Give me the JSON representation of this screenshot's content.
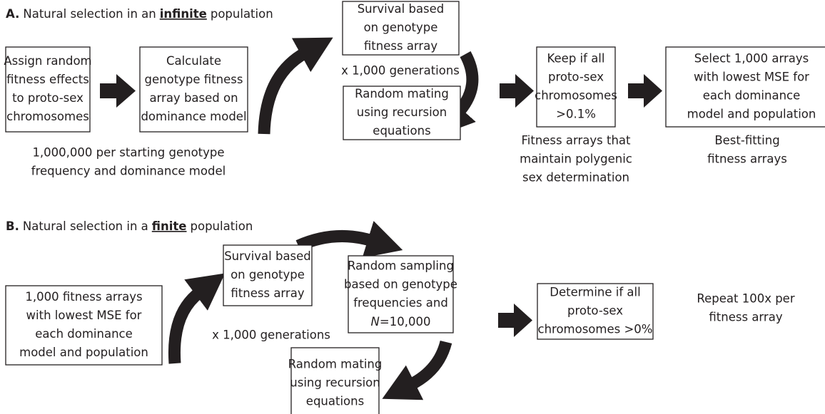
{
  "panel_a": {
    "label": "A.",
    "title": {
      "before": "Natural selection in an",
      "emphasis": "infinite",
      "after": "population"
    },
    "boxes": [
      {
        "lines": [
          "Assign random",
          "fitness effects",
          "to proto-sex",
          "chromosomes"
        ]
      },
      {
        "lines": [
          "Calculate",
          "genotype fitness",
          "array based on",
          "dominance model"
        ]
      },
      {
        "lines": [
          "Survival based",
          "on genotype",
          "fitness array"
        ]
      },
      {
        "lines": [
          "Random mating",
          "using recursion",
          "equations"
        ]
      },
      {
        "lines": [
          "Keep if all",
          "proto-sex",
          "chromosomes",
          ">0.1%"
        ]
      },
      {
        "lines": [
          "Select 1,000 arrays",
          "with lowest MSE for",
          "each dominance",
          "model and population"
        ]
      }
    ],
    "loop_label": "x 1,000 generations",
    "captions": [
      {
        "lines": [
          "1,000,000 per starting genotype",
          "frequency and dominance model"
        ]
      },
      {
        "lines": [
          "Fitness arrays that",
          "maintain polygenic",
          "sex determination"
        ]
      },
      {
        "lines": [
          "Best-fitting",
          "fitness arrays"
        ]
      }
    ]
  },
  "panel_b": {
    "label": "B.",
    "title": {
      "before": "Natural selection in a",
      "emphasis": "finite",
      "after": "population"
    },
    "boxes": [
      {
        "lines": [
          "1,000 fitness arrays",
          "with lowest MSE for",
          "each dominance",
          "model and population"
        ]
      },
      {
        "lines": [
          "Survival based",
          "on genotype",
          "fitness array"
        ]
      },
      {
        "lines": [
          "Random sampling",
          "based on genotype",
          "frequencies and",
          {
            "italic": "N",
            "rest": "=10,000"
          }
        ]
      },
      {
        "lines": [
          "Random mating",
          "using recursion",
          "equations"
        ]
      },
      {
        "lines": [
          "Determine if all",
          "proto-sex",
          "chromosomes >0%"
        ]
      }
    ],
    "loop_label": "x 1,000 generations",
    "captions": [
      {
        "lines": [
          "Repeat 100x per",
          "fitness array"
        ]
      }
    ]
  }
}
